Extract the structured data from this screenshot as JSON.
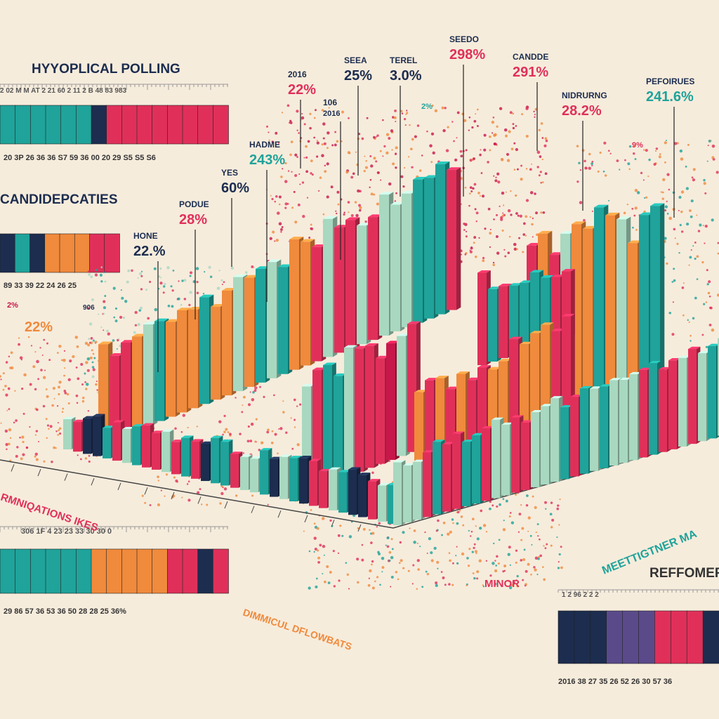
{
  "title": "HYYOPLICAL POLLING",
  "subtitle": "CANDIDEPCATIES",
  "callouts": [
    {
      "label": "2016",
      "value": "22%"
    },
    {
      "label": "SEEA",
      "value": "25%"
    },
    {
      "label": "TEREL",
      "value": "3.0%"
    },
    {
      "label": "SEEDO",
      "value": "298%"
    },
    {
      "label": "CANDDE",
      "value": "291%"
    },
    {
      "label": "NIDRURNG",
      "value": "28.2%"
    },
    {
      "label": "PEFOIRUES",
      "value": "241.6%"
    },
    {
      "label": "HADME",
      "value": "243%"
    },
    {
      "label": "YES",
      "value": "60%"
    },
    {
      "label": "PODUE",
      "value": "28%"
    },
    {
      "label": "HONE",
      "value": "22.%"
    },
    {
      "label": "106",
      "value": "2016"
    }
  ],
  "small_labels": [
    "22%",
    "2%",
    "9%",
    "2%",
    "906"
  ],
  "scales": {
    "top_upper": "2  02  M  M  AT  2  21  60  2  11  2 B 48  83  983",
    "top_lower": "20  3P  26  36  36  S7  59  36  00  20  29  S5  S5  S6",
    "mid_lower": "89  33  39  22  24  26  25",
    "bottom_upper": "306  1F  4  23  23  33  30  30  0",
    "bottom_lower": "29  86  57  36  53  36  50  28  28  25  36%",
    "right_upper": "1  2  96  2  2  2",
    "right_lower": "2016  38  27  35  26  52  26  30  57  36"
  },
  "side_texts": {
    "left": "RMNIQATIONS IKES",
    "bottom": "DIMMICUL DFLOWBATS",
    "minor": "MINOR",
    "right_title": "REFFOMER",
    "right_diag": "MEETTIGTNER MA"
  }
}
